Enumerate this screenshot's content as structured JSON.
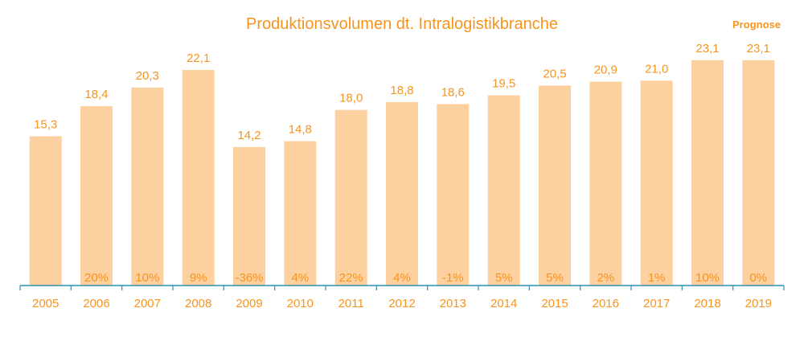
{
  "chart_data": {
    "type": "bar",
    "title": "Produktionsvolumen dt. Intralogistikbranche",
    "annotation": "Prognose",
    "categories": [
      "2005",
      "2006",
      "2007",
      "2008",
      "2009",
      "2010",
      "2011",
      "2012",
      "2013",
      "2014",
      "2015",
      "2016",
      "2017",
      "2018",
      "2019"
    ],
    "values": [
      15.3,
      18.4,
      20.3,
      22.1,
      14.2,
      14.8,
      18.0,
      18.8,
      18.6,
      19.5,
      20.5,
      20.9,
      21.0,
      23.1,
      23.1
    ],
    "value_labels": [
      "15,3",
      "18,4",
      "20,3",
      "22,1",
      "14,2",
      "14,8",
      "18,0",
      "18,8",
      "18,6",
      "19,5",
      "20,5",
      "20,9",
      "21,0",
      "23,1",
      "23,1"
    ],
    "growth_labels": [
      "",
      "20%",
      "10%",
      "9%",
      "-36%",
      "4%",
      "22%",
      "4%",
      "-1%",
      "5%",
      "5%",
      "2%",
      "1%",
      "10%",
      "0%"
    ],
    "ylim": [
      0,
      23.5
    ],
    "grid": false,
    "colors": {
      "bar": "#fdd09f",
      "text": "#f7941d",
      "axis": "#2e8fb0"
    }
  }
}
